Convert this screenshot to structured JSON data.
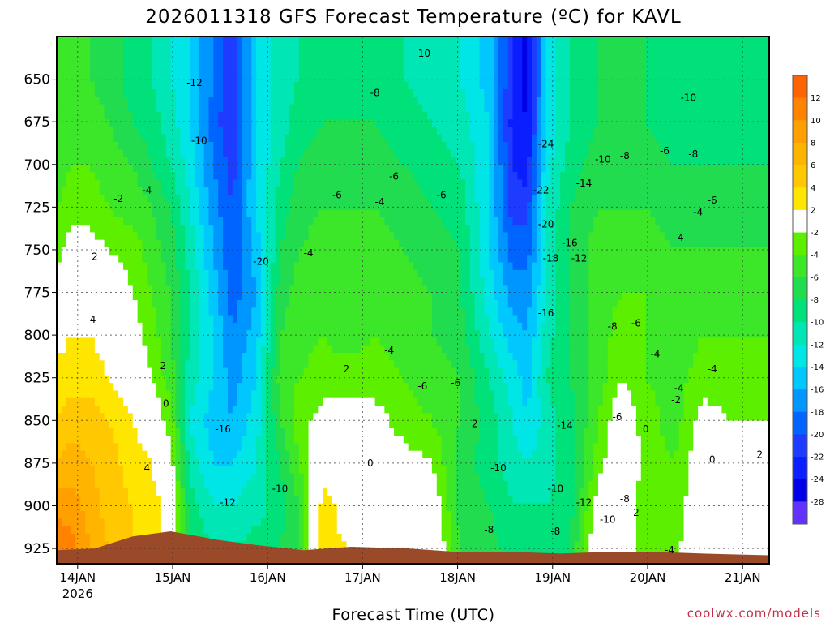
{
  "page": {
    "title": "2026011318 GFS Forecast Temperature (ºC) for KAVL"
  },
  "chart_data": {
    "type": "heatmap",
    "title": "2026011318 GFS Forecast Temperature (ºC) for KAVL",
    "xlabel": "Forecast Time (UTC)",
    "ylabel": "",
    "credit": "coolwx.com/models",
    "y_axis": {
      "ticks": [
        "650",
        "675",
        "700",
        "725",
        "750",
        "775",
        "800",
        "825",
        "850",
        "875",
        "900",
        "925"
      ],
      "values": [
        650,
        675,
        700,
        725,
        750,
        775,
        800,
        825,
        850,
        875,
        900,
        925
      ],
      "inverted": true,
      "range": [
        625,
        934
      ]
    },
    "x_axis": {
      "ticks": [
        "14JAN",
        "15JAN",
        "16JAN",
        "17JAN",
        "18JAN",
        "19JAN",
        "20JAN",
        "21JAN"
      ],
      "first_tick_sub": "2026",
      "values": [
        0.22,
        1.22,
        2.22,
        3.22,
        4.22,
        5.22,
        6.22,
        7.22
      ],
      "range": [
        0,
        7.5
      ]
    },
    "grid": true,
    "colorbar": {
      "labels": [
        "12",
        "10",
        "8",
        "6",
        "4",
        "2",
        "-2",
        "-4",
        "-6",
        "-8",
        "-10",
        "-12",
        "-14",
        "-16",
        "-18",
        "-20",
        "-22",
        "-24",
        "-28"
      ],
      "bins": [
        {
          "low": 12,
          "high": 14,
          "color": "#ff6400"
        },
        {
          "low": 10,
          "high": 12,
          "color": "#ff8200"
        },
        {
          "low": 8,
          "high": 10,
          "color": "#ffa000"
        },
        {
          "low": 6,
          "high": 8,
          "color": "#ffb400"
        },
        {
          "low": 4,
          "high": 6,
          "color": "#ffc800"
        },
        {
          "low": 2,
          "high": 4,
          "color": "#ffe600"
        },
        {
          "low": -2,
          "high": 2,
          "color": "#ffffff"
        },
        {
          "low": -4,
          "high": -2,
          "color": "#5cf000"
        },
        {
          "low": -6,
          "high": -4,
          "color": "#3ce628"
        },
        {
          "low": -8,
          "high": -6,
          "color": "#22dc50"
        },
        {
          "low": -10,
          "high": -8,
          "color": "#00e17a"
        },
        {
          "low": -12,
          "high": -10,
          "color": "#00e6b4"
        },
        {
          "low": -14,
          "high": -12,
          "color": "#00e6e6"
        },
        {
          "low": -16,
          "high": -14,
          "color": "#00c8ff"
        },
        {
          "low": -18,
          "high": -16,
          "color": "#0096ff"
        },
        {
          "low": -20,
          "high": -18,
          "color": "#0064ff"
        },
        {
          "low": -22,
          "high": -20,
          "color": "#1e3cff"
        },
        {
          "low": -24,
          "high": -22,
          "color": "#0a1eff"
        },
        {
          "low": -28,
          "high": -24,
          "color": "#0000e6"
        },
        {
          "low": -32,
          "high": -28,
          "color": "#6432ff"
        }
      ]
    },
    "terrain_color": "#9a4a28",
    "zero_contour_color": "#c80064",
    "series": [
      {
        "x": 0.0,
        "values": [
          -5,
          -5,
          -5,
          -4,
          -3,
          -1,
          1,
          3,
          4,
          6,
          9,
          12
        ]
      },
      {
        "x": 0.15,
        "values": [
          -5,
          -5,
          -4,
          -3,
          -1,
          1,
          2,
          3,
          5,
          7,
          9,
          11
        ]
      },
      {
        "x": 0.35,
        "values": [
          -6,
          -5,
          -4,
          -3,
          -1,
          1,
          2,
          3,
          5,
          6,
          7,
          8
        ]
      },
      {
        "x": 0.55,
        "values": [
          -7,
          -6,
          -5,
          -4,
          -2,
          0,
          1,
          2,
          4,
          5,
          5,
          6
        ]
      },
      {
        "x": 0.8,
        "values": [
          -9,
          -8,
          -6,
          -5,
          -3,
          -2,
          -1,
          0,
          2,
          3,
          4,
          4
        ]
      },
      {
        "x": 1.0,
        "values": [
          -10,
          -9,
          -8,
          -6,
          -5,
          -4,
          -3,
          -2,
          0,
          2,
          3,
          3
        ]
      },
      {
        "x": 1.2,
        "values": [
          -12,
          -11,
          -10,
          -8,
          -7,
          -6,
          -6,
          -5,
          -3,
          -1,
          1,
          1
        ]
      },
      {
        "x": 1.4,
        "values": [
          -14,
          -14,
          -13,
          -12,
          -11,
          -10,
          -10,
          -11,
          -12,
          -11,
          -9,
          -8
        ]
      },
      {
        "x": 1.65,
        "values": [
          -18,
          -19,
          -18,
          -17,
          -16,
          -15,
          -14,
          -14,
          -15,
          -14,
          -12,
          -10
        ]
      },
      {
        "x": 1.85,
        "values": [
          -22,
          -22,
          -21,
          -20,
          -20,
          -19,
          -18,
          -17,
          -16,
          -14,
          -12,
          -10
        ]
      },
      {
        "x": 2.1,
        "values": [
          -14,
          -14,
          -14,
          -14,
          -15,
          -16,
          -15,
          -14,
          -13,
          -12,
          -11,
          -9
        ]
      },
      {
        "x": 2.35,
        "values": [
          -11,
          -11,
          -10,
          -9,
          -8,
          -7,
          -6,
          -5,
          -6,
          -8,
          -9,
          -8
        ]
      },
      {
        "x": 2.55,
        "values": [
          -10,
          -9,
          -8,
          -7,
          -6,
          -5,
          -5,
          -4,
          -3,
          -4,
          -6,
          -6
        ]
      },
      {
        "x": 2.8,
        "values": [
          -9,
          -8,
          -7,
          -6,
          -5,
          -4,
          -4,
          -3,
          -1,
          1,
          3,
          3
        ]
      },
      {
        "x": 3.05,
        "values": [
          -8,
          -8,
          -7,
          -6,
          -6,
          -5,
          -5,
          -3,
          -1,
          0,
          1,
          2
        ]
      },
      {
        "x": 3.35,
        "values": [
          -9,
          -8,
          -7,
          -6,
          -5,
          -4,
          -4,
          -3,
          -1,
          0,
          2,
          2
        ]
      },
      {
        "x": 3.65,
        "values": [
          -10,
          -9,
          -8,
          -7,
          -6,
          -5,
          -5,
          -4,
          -3,
          -1,
          0,
          1
        ]
      },
      {
        "x": 3.95,
        "values": [
          -11,
          -10,
          -9,
          -8,
          -7,
          -6,
          -6,
          -5,
          -4,
          -2,
          0,
          1
        ]
      },
      {
        "x": 4.25,
        "values": [
          -12,
          -11,
          -10,
          -9,
          -8,
          -8,
          -7,
          -6,
          -6,
          -7,
          -7,
          -6
        ]
      },
      {
        "x": 4.55,
        "values": [
          -15,
          -14,
          -14,
          -14,
          -14,
          -13,
          -12,
          -10,
          -9,
          -9,
          -8,
          -7
        ]
      },
      {
        "x": 4.8,
        "values": [
          -22,
          -23,
          -22,
          -21,
          -19,
          -17,
          -15,
          -13,
          -12,
          -11,
          -10,
          -9
        ]
      },
      {
        "x": 4.95,
        "values": [
          -25,
          -24,
          -23,
          -21,
          -19,
          -17,
          -16,
          -15,
          -14,
          -12,
          -10,
          -9
        ]
      },
      {
        "x": 5.15,
        "values": [
          -14,
          -14,
          -13,
          -12,
          -12,
          -12,
          -11,
          -10,
          -11,
          -11,
          -10,
          -9
        ]
      },
      {
        "x": 5.4,
        "values": [
          -10,
          -10,
          -9,
          -8,
          -8,
          -8,
          -8,
          -8,
          -9,
          -9,
          -9,
          -8
        ]
      },
      {
        "x": 5.7,
        "values": [
          -8,
          -8,
          -7,
          -6,
          -5,
          -5,
          -5,
          -5,
          -4,
          -3,
          -1,
          1
        ]
      },
      {
        "x": 5.95,
        "values": [
          -8,
          -8,
          -7,
          -6,
          -5,
          -4,
          -3,
          -2,
          0,
          1,
          2,
          2
        ]
      },
      {
        "x": 6.2,
        "values": [
          -8,
          -8,
          -7,
          -6,
          -5,
          -4,
          -4,
          -4,
          -3,
          -3,
          -4,
          -4
        ]
      },
      {
        "x": 6.5,
        "values": [
          -9,
          -9,
          -8,
          -7,
          -6,
          -5,
          -5,
          -5,
          -5,
          -4,
          -4,
          -3
        ]
      },
      {
        "x": 6.8,
        "values": [
          -10,
          -9,
          -8,
          -7,
          -6,
          -5,
          -4,
          -3,
          -1,
          0,
          1,
          2
        ]
      },
      {
        "x": 7.1,
        "values": [
          -10,
          -9,
          -8,
          -7,
          -6,
          -5,
          -4,
          -3,
          -2,
          -1,
          1,
          0
        ]
      },
      {
        "x": 7.5,
        "values": [
          -10,
          -9,
          -8,
          -7,
          -6,
          -5,
          -4,
          -3,
          -2,
          -1,
          -1,
          -1
        ]
      }
    ],
    "terrain": [
      {
        "x": 0.0,
        "p": 926
      },
      {
        "x": 0.4,
        "p": 925
      },
      {
        "x": 0.8,
        "p": 918
      },
      {
        "x": 1.2,
        "p": 915
      },
      {
        "x": 1.7,
        "p": 920
      },
      {
        "x": 2.1,
        "p": 923
      },
      {
        "x": 2.6,
        "p": 926
      },
      {
        "x": 3.1,
        "p": 924
      },
      {
        "x": 3.7,
        "p": 925
      },
      {
        "x": 4.2,
        "p": 927
      },
      {
        "x": 4.8,
        "p": 927
      },
      {
        "x": 5.3,
        "p": 928
      },
      {
        "x": 5.8,
        "p": 927
      },
      {
        "x": 6.3,
        "p": 927
      },
      {
        "x": 6.8,
        "p": 928
      },
      {
        "x": 7.5,
        "p": 929
      }
    ],
    "annotations": [
      {
        "text": "-12",
        "x": 1.45,
        "p": 652
      },
      {
        "text": "-10",
        "x": 1.5,
        "p": 686
      },
      {
        "text": "-4",
        "x": 0.95,
        "p": 715
      },
      {
        "text": "-2",
        "x": 0.65,
        "p": 720
      },
      {
        "text": "2",
        "x": 0.4,
        "p": 754
      },
      {
        "text": "4",
        "x": 0.38,
        "p": 791
      },
      {
        "text": "2",
        "x": 1.12,
        "p": 818
      },
      {
        "text": "0",
        "x": 1.15,
        "p": 840
      },
      {
        "text": "4",
        "x": 0.95,
        "p": 878
      },
      {
        "text": "-20",
        "x": 2.15,
        "p": 757
      },
      {
        "text": "-16",
        "x": 1.75,
        "p": 855
      },
      {
        "text": "-12",
        "x": 1.8,
        "p": 898
      },
      {
        "text": "-10",
        "x": 2.35,
        "p": 890
      },
      {
        "text": "-4",
        "x": 2.65,
        "p": 752
      },
      {
        "text": "-6",
        "x": 2.95,
        "p": 718
      },
      {
        "text": "-8",
        "x": 3.35,
        "p": 658
      },
      {
        "text": "-4",
        "x": 3.4,
        "p": 722
      },
      {
        "text": "-6",
        "x": 3.55,
        "p": 707
      },
      {
        "text": "-4",
        "x": 3.5,
        "p": 809
      },
      {
        "text": "2",
        "x": 3.05,
        "p": 820
      },
      {
        "text": "0",
        "x": 3.3,
        "p": 875
      },
      {
        "text": "-6",
        "x": 3.85,
        "p": 830
      },
      {
        "text": "-6",
        "x": 4.05,
        "p": 718
      },
      {
        "text": "-6",
        "x": 4.2,
        "p": 828
      },
      {
        "text": "2",
        "x": 4.4,
        "p": 852
      },
      {
        "text": "-10",
        "x": 3.85,
        "p": 635
      },
      {
        "text": "-8",
        "x": 4.55,
        "p": 914
      },
      {
        "text": "-10",
        "x": 4.65,
        "p": 878
      },
      {
        "text": "-10",
        "x": 5.25,
        "p": 890
      },
      {
        "text": "-8",
        "x": 5.25,
        "p": 915
      },
      {
        "text": "-24",
        "x": 5.15,
        "p": 688
      },
      {
        "text": "-22",
        "x": 5.1,
        "p": 715
      },
      {
        "text": "-20",
        "x": 5.15,
        "p": 735
      },
      {
        "text": "-16",
        "x": 5.4,
        "p": 746
      },
      {
        "text": "-18",
        "x": 5.2,
        "p": 755
      },
      {
        "text": "-12",
        "x": 5.5,
        "p": 755
      },
      {
        "text": "-16",
        "x": 5.15,
        "p": 787
      },
      {
        "text": "-14",
        "x": 5.55,
        "p": 711
      },
      {
        "text": "-10",
        "x": 5.75,
        "p": 697
      },
      {
        "text": "-14",
        "x": 5.35,
        "p": 853
      },
      {
        "text": "-12",
        "x": 5.55,
        "p": 898
      },
      {
        "text": "-10",
        "x": 5.8,
        "p": 908
      },
      {
        "text": "-8",
        "x": 5.98,
        "p": 896
      },
      {
        "text": "-8",
        "x": 5.98,
        "p": 695
      },
      {
        "text": "-8",
        "x": 5.85,
        "p": 795
      },
      {
        "text": "-6",
        "x": 6.1,
        "p": 793
      },
      {
        "text": "-4",
        "x": 6.3,
        "p": 811
      },
      {
        "text": "-6",
        "x": 6.4,
        "p": 692
      },
      {
        "text": "-8",
        "x": 6.7,
        "p": 694
      },
      {
        "text": "-10",
        "x": 6.65,
        "p": 661
      },
      {
        "text": "-4",
        "x": 6.55,
        "p": 743
      },
      {
        "text": "-4",
        "x": 6.75,
        "p": 728
      },
      {
        "text": "-6",
        "x": 6.9,
        "p": 721
      },
      {
        "text": "-6",
        "x": 5.9,
        "p": 848
      },
      {
        "text": "0",
        "x": 6.2,
        "p": 855
      },
      {
        "text": "2",
        "x": 6.1,
        "p": 904
      },
      {
        "text": "-2",
        "x": 6.52,
        "p": 838
      },
      {
        "text": "-4",
        "x": 6.55,
        "p": 831
      },
      {
        "text": "-4",
        "x": 6.9,
        "p": 820
      },
      {
        "text": "0",
        "x": 6.9,
        "p": 873
      },
      {
        "text": "2",
        "x": 7.4,
        "p": 870
      },
      {
        "text": "-4",
        "x": 6.45,
        "p": 926
      }
    ]
  }
}
